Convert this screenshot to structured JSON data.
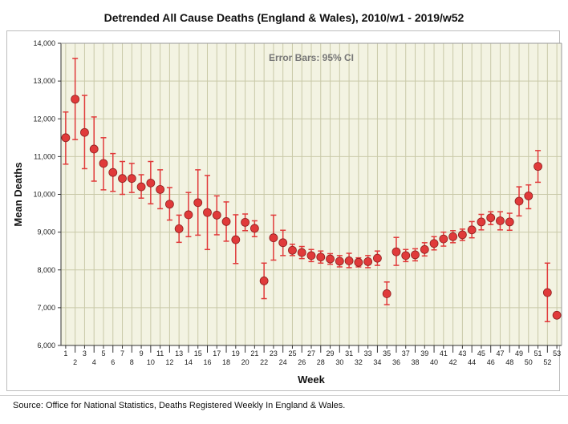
{
  "chart_data": {
    "type": "scatter",
    "title": "Detrended All Cause Deaths (England & Wales), 2010/w1 - 2019/w52",
    "xlabel": "Week",
    "ylabel": "Mean Deaths",
    "annotation": "Error Bars: 95% CI",
    "ylim": [
      6000,
      14000
    ],
    "xlim": [
      1,
      53
    ],
    "y_ticks": [
      "6,000",
      "7,000",
      "8,000",
      "9,000",
      "10,000",
      "11,000",
      "12,000",
      "13,000",
      "14,000"
    ],
    "x_ticks": [
      "1",
      "2",
      "3",
      "4",
      "5",
      "6",
      "7",
      "8",
      "9",
      "10",
      "11",
      "12",
      "13",
      "14",
      "15",
      "16",
      "17",
      "18",
      "19",
      "20",
      "21",
      "22",
      "23",
      "24",
      "25",
      "26",
      "27",
      "28",
      "29",
      "30",
      "31",
      "32",
      "33",
      "34",
      "35",
      "36",
      "37",
      "38",
      "39",
      "40",
      "41",
      "42",
      "43",
      "44",
      "45",
      "46",
      "47",
      "48",
      "49",
      "50",
      "51",
      "52",
      "53"
    ],
    "grid": true,
    "marker_color": "#e03a3a",
    "error_color": "#e03a3a",
    "points": [
      {
        "x": 1,
        "y": 11500,
        "lo": 10800,
        "hi": 12180
      },
      {
        "x": 2,
        "y": 12520,
        "lo": 11450,
        "hi": 13600
      },
      {
        "x": 3,
        "y": 11640,
        "lo": 10680,
        "hi": 12620
      },
      {
        "x": 4,
        "y": 11200,
        "lo": 10350,
        "hi": 12050
      },
      {
        "x": 5,
        "y": 10820,
        "lo": 10120,
        "hi": 11500
      },
      {
        "x": 6,
        "y": 10580,
        "lo": 10080,
        "hi": 11080
      },
      {
        "x": 7,
        "y": 10420,
        "lo": 10000,
        "hi": 10870
      },
      {
        "x": 8,
        "y": 10420,
        "lo": 10050,
        "hi": 10820
      },
      {
        "x": 9,
        "y": 10200,
        "lo": 9900,
        "hi": 10520
      },
      {
        "x": 10,
        "y": 10300,
        "lo": 9750,
        "hi": 10870
      },
      {
        "x": 11,
        "y": 10130,
        "lo": 9620,
        "hi": 10650
      },
      {
        "x": 12,
        "y": 9740,
        "lo": 9320,
        "hi": 10180
      },
      {
        "x": 13,
        "y": 9090,
        "lo": 8730,
        "hi": 9450
      },
      {
        "x": 14,
        "y": 9460,
        "lo": 8880,
        "hi": 10050
      },
      {
        "x": 15,
        "y": 9780,
        "lo": 8920,
        "hi": 10650
      },
      {
        "x": 16,
        "y": 9520,
        "lo": 8540,
        "hi": 10500
      },
      {
        "x": 17,
        "y": 9450,
        "lo": 8930,
        "hi": 9960
      },
      {
        "x": 18,
        "y": 9280,
        "lo": 8760,
        "hi": 9800
      },
      {
        "x": 19,
        "y": 8800,
        "lo": 8170,
        "hi": 9460
      },
      {
        "x": 20,
        "y": 9260,
        "lo": 9040,
        "hi": 9480
      },
      {
        "x": 21,
        "y": 9100,
        "lo": 8880,
        "hi": 9300
      },
      {
        "x": 22,
        "y": 7710,
        "lo": 7240,
        "hi": 8180
      },
      {
        "x": 23,
        "y": 8850,
        "lo": 8260,
        "hi": 9450
      },
      {
        "x": 24,
        "y": 8720,
        "lo": 8380,
        "hi": 9050
      },
      {
        "x": 25,
        "y": 8520,
        "lo": 8380,
        "hi": 8680
      },
      {
        "x": 26,
        "y": 8460,
        "lo": 8300,
        "hi": 8620
      },
      {
        "x": 27,
        "y": 8380,
        "lo": 8220,
        "hi": 8540
      },
      {
        "x": 28,
        "y": 8340,
        "lo": 8180,
        "hi": 8500
      },
      {
        "x": 29,
        "y": 8290,
        "lo": 8150,
        "hi": 8430
      },
      {
        "x": 30,
        "y": 8230,
        "lo": 8080,
        "hi": 8380
      },
      {
        "x": 31,
        "y": 8240,
        "lo": 8060,
        "hi": 8440
      },
      {
        "x": 32,
        "y": 8200,
        "lo": 8080,
        "hi": 8320
      },
      {
        "x": 33,
        "y": 8220,
        "lo": 8060,
        "hi": 8380
      },
      {
        "x": 34,
        "y": 8310,
        "lo": 8120,
        "hi": 8500
      },
      {
        "x": 35,
        "y": 7370,
        "lo": 7080,
        "hi": 7680
      },
      {
        "x": 36,
        "y": 8480,
        "lo": 8120,
        "hi": 8860
      },
      {
        "x": 37,
        "y": 8380,
        "lo": 8220,
        "hi": 8540
      },
      {
        "x": 38,
        "y": 8400,
        "lo": 8240,
        "hi": 8560
      },
      {
        "x": 39,
        "y": 8540,
        "lo": 8370,
        "hi": 8720
      },
      {
        "x": 40,
        "y": 8700,
        "lo": 8530,
        "hi": 8880
      },
      {
        "x": 41,
        "y": 8820,
        "lo": 8630,
        "hi": 9000
      },
      {
        "x": 42,
        "y": 8880,
        "lo": 8720,
        "hi": 9040
      },
      {
        "x": 43,
        "y": 8930,
        "lo": 8780,
        "hi": 9080
      },
      {
        "x": 44,
        "y": 9060,
        "lo": 8850,
        "hi": 9280
      },
      {
        "x": 45,
        "y": 9270,
        "lo": 9060,
        "hi": 9470
      },
      {
        "x": 46,
        "y": 9380,
        "lo": 9200,
        "hi": 9540
      },
      {
        "x": 47,
        "y": 9300,
        "lo": 9060,
        "hi": 9540
      },
      {
        "x": 48,
        "y": 9270,
        "lo": 9050,
        "hi": 9500
      },
      {
        "x": 49,
        "y": 9820,
        "lo": 9430,
        "hi": 10200
      },
      {
        "x": 50,
        "y": 9960,
        "lo": 9620,
        "hi": 10250
      },
      {
        "x": 51,
        "y": 10740,
        "lo": 10320,
        "hi": 11160
      },
      {
        "x": 52,
        "y": 7400,
        "lo": 6630,
        "hi": 8180
      },
      {
        "x": 53,
        "y": 6800,
        "lo": 6800,
        "hi": 6800
      }
    ]
  },
  "footer": {
    "source": "Source: Office for National Statistics, Deaths Registered Weekly In England & Wales."
  }
}
